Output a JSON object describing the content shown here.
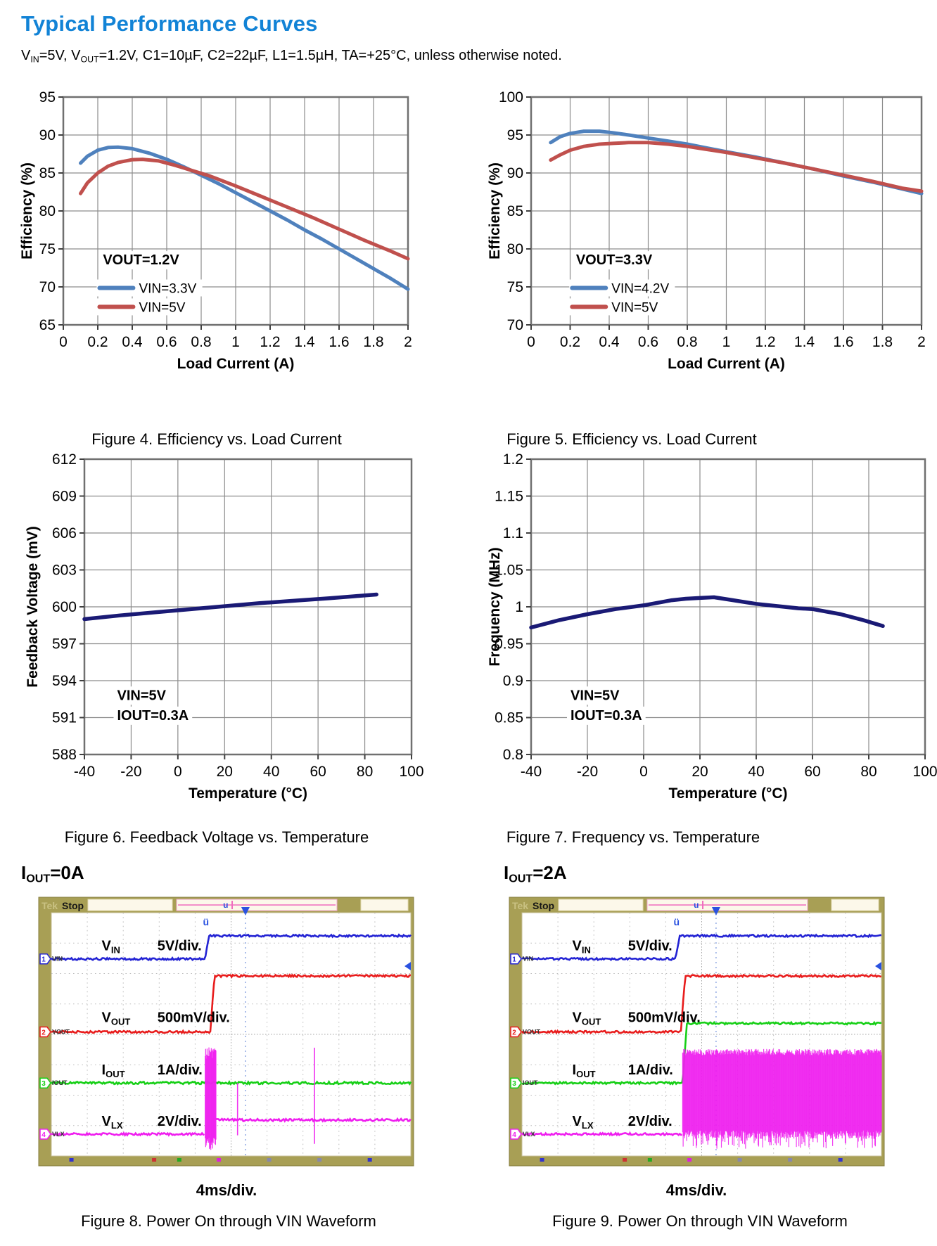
{
  "page": {
    "title": "Typical Performance Curves",
    "conditions_segments": [
      {
        "t": "V"
      },
      {
        "t": "IN",
        "sub": true
      },
      {
        "t": "=5V, V"
      },
      {
        "t": "OUT",
        "sub": true
      },
      {
        "t": "=1.2V, C1=10µF, C2=22µF, L1=1.5µH, TA=+25°C, unless otherwise noted."
      }
    ],
    "accent_color": "#1283d6"
  },
  "chart_data": [
    {
      "type": "line",
      "id": "figure4",
      "caption": "Figure 4. Efficiency vs. Load Current",
      "xlabel": "Load Current (A)",
      "ylabel": "Efficiency (%)",
      "xlim": [
        0,
        2
      ],
      "ylim": [
        65,
        95
      ],
      "xticks": [
        0,
        0.2,
        0.4,
        0.6,
        0.8,
        1,
        1.2,
        1.4,
        1.6,
        1.8,
        2
      ],
      "xtick_labels": [
        "0",
        "0.2",
        "0.4",
        "0.6",
        "0.8",
        "1",
        "1.2",
        "1.4",
        "1.6",
        "1.8",
        "2"
      ],
      "yticks": [
        65,
        70,
        75,
        80,
        85,
        90,
        95
      ],
      "ytick_labels": [
        "65",
        "70",
        "75",
        "80",
        "85",
        "90",
        "95"
      ],
      "grid": true,
      "legend_position": "lower-left",
      "annotation": {
        "lines": [
          "VOUT=1.2V"
        ],
        "fx": 0.115,
        "fy": 0.735
      },
      "legend": {
        "fx": 0.105,
        "fy": 0.838,
        "items": [
          {
            "label": "VIN=3.3V",
            "color": "#4F81BD"
          },
          {
            "label": "VIN=5V",
            "color": "#C0504D"
          }
        ]
      },
      "series": [
        {
          "name": "VIN=3.3V",
          "color": "#4F81BD",
          "points": [
            [
              0.1,
              86.3
            ],
            [
              0.14,
              87.2
            ],
            [
              0.2,
              88.0
            ],
            [
              0.26,
              88.35
            ],
            [
              0.32,
              88.4
            ],
            [
              0.4,
              88.2
            ],
            [
              0.5,
              87.6
            ],
            [
              0.6,
              86.8
            ],
            [
              0.7,
              85.8
            ],
            [
              0.8,
              84.7
            ],
            [
              0.9,
              83.6
            ],
            [
              1.0,
              82.4
            ],
            [
              1.1,
              81.2
            ],
            [
              1.2,
              80.0
            ],
            [
              1.3,
              78.8
            ],
            [
              1.4,
              77.5
            ],
            [
              1.5,
              76.3
            ],
            [
              1.6,
              75.0
            ],
            [
              1.7,
              73.7
            ],
            [
              1.8,
              72.4
            ],
            [
              1.9,
              71.1
            ],
            [
              2.0,
              69.7
            ]
          ]
        },
        {
          "name": "VIN=5V",
          "color": "#C0504D",
          "points": [
            [
              0.1,
              82.3
            ],
            [
              0.14,
              83.7
            ],
            [
              0.2,
              85.0
            ],
            [
              0.26,
              85.9
            ],
            [
              0.32,
              86.4
            ],
            [
              0.4,
              86.75
            ],
            [
              0.46,
              86.8
            ],
            [
              0.55,
              86.6
            ],
            [
              0.65,
              86.0
            ],
            [
              0.75,
              85.3
            ],
            [
              0.85,
              84.6
            ],
            [
              1.0,
              83.3
            ],
            [
              1.15,
              81.9
            ],
            [
              1.3,
              80.5
            ],
            [
              1.45,
              79.1
            ],
            [
              1.6,
              77.6
            ],
            [
              1.75,
              76.1
            ],
            [
              1.9,
              74.7
            ],
            [
              2.0,
              73.7
            ]
          ]
        }
      ]
    },
    {
      "type": "line",
      "id": "figure5",
      "caption": "Figure 5. Efficiency vs. Load Current",
      "xlabel": "Load Current (A)",
      "ylabel": "Efficiency (%)",
      "xlim": [
        0,
        2
      ],
      "ylim": [
        70,
        100
      ],
      "xticks": [
        0,
        0.2,
        0.4,
        0.6,
        0.8,
        1,
        1.2,
        1.4,
        1.6,
        1.8,
        2
      ],
      "xtick_labels": [
        "0",
        "0.2",
        "0.4",
        "0.6",
        "0.8",
        "1",
        "1.2",
        "1.4",
        "1.6",
        "1.8",
        "2"
      ],
      "yticks": [
        70,
        75,
        80,
        85,
        90,
        95,
        100
      ],
      "ytick_labels": [
        "70",
        "75",
        "80",
        "85",
        "90",
        "95",
        "100"
      ],
      "grid": true,
      "legend_position": "lower-left",
      "annotation": {
        "lines": [
          "VOUT=3.3V"
        ],
        "fx": 0.115,
        "fy": 0.735
      },
      "legend": {
        "fx": 0.105,
        "fy": 0.838,
        "items": [
          {
            "label": "VIN=4.2V",
            "color": "#4F81BD"
          },
          {
            "label": "VIN=5V",
            "color": "#C0504D"
          }
        ]
      },
      "series": [
        {
          "name": "VIN=4.2V",
          "color": "#4F81BD",
          "points": [
            [
              0.1,
              94.0
            ],
            [
              0.15,
              94.8
            ],
            [
              0.2,
              95.2
            ],
            [
              0.27,
              95.5
            ],
            [
              0.35,
              95.5
            ],
            [
              0.42,
              95.3
            ],
            [
              0.5,
              95.0
            ],
            [
              0.6,
              94.6
            ],
            [
              0.7,
              94.2
            ],
            [
              0.8,
              93.8
            ],
            [
              0.9,
              93.3
            ],
            [
              1.0,
              92.8
            ],
            [
              1.15,
              92.1
            ],
            [
              1.3,
              91.3
            ],
            [
              1.45,
              90.5
            ],
            [
              1.6,
              89.6
            ],
            [
              1.75,
              88.8
            ],
            [
              1.9,
              87.9
            ],
            [
              2.0,
              87.3
            ]
          ]
        },
        {
          "name": "VIN=5V",
          "color": "#C0504D",
          "points": [
            [
              0.1,
              91.7
            ],
            [
              0.15,
              92.4
            ],
            [
              0.2,
              93.0
            ],
            [
              0.27,
              93.5
            ],
            [
              0.35,
              93.8
            ],
            [
              0.42,
              93.9
            ],
            [
              0.5,
              94.0
            ],
            [
              0.6,
              94.0
            ],
            [
              0.7,
              93.8
            ],
            [
              0.8,
              93.5
            ],
            [
              0.9,
              93.1
            ],
            [
              1.0,
              92.7
            ],
            [
              1.15,
              92.0
            ],
            [
              1.3,
              91.3
            ],
            [
              1.45,
              90.5
            ],
            [
              1.6,
              89.7
            ],
            [
              1.75,
              88.9
            ],
            [
              1.9,
              88.0
            ],
            [
              2.0,
              87.6
            ]
          ]
        }
      ]
    },
    {
      "type": "line",
      "id": "figure6",
      "caption": "Figure 6. Feedback Voltage vs. Temperature",
      "xlabel": "Temperature (°C)",
      "ylabel": "Feedback Voltage (mV)",
      "xlim": [
        -40,
        100
      ],
      "ylim": [
        588,
        612
      ],
      "xticks": [
        -40,
        -20,
        0,
        20,
        40,
        60,
        80,
        100
      ],
      "xtick_labels": [
        "-40",
        "-20",
        "0",
        "20",
        "40",
        "60",
        "80",
        "100"
      ],
      "yticks": [
        588,
        591,
        594,
        597,
        600,
        603,
        606,
        609,
        612
      ],
      "ytick_labels": [
        "588",
        "591",
        "594",
        "597",
        "600",
        "603",
        "606",
        "609",
        "612"
      ],
      "grid": true,
      "annotation": {
        "lines": [
          "VIN=5V",
          "IOUT=0.3A"
        ],
        "fx": 0.1,
        "fy": 0.815
      },
      "legend": null,
      "series": [
        {
          "name": "VFB",
          "color": "#1a1a75",
          "points": [
            [
              -40,
              599.0
            ],
            [
              -25,
              599.3
            ],
            [
              -10,
              599.55
            ],
            [
              5,
              599.8
            ],
            [
              20,
              600.05
            ],
            [
              35,
              600.3
            ],
            [
              50,
              600.5
            ],
            [
              65,
              600.7
            ],
            [
              75,
              600.85
            ],
            [
              85,
              601.0
            ]
          ]
        }
      ]
    },
    {
      "type": "line",
      "id": "figure7",
      "caption": "Figure 7. Frequency vs. Temperature",
      "xlabel": "Temperature (°C)",
      "ylabel": "Frequency (MHz)",
      "xlim": [
        -40,
        100
      ],
      "ylim": [
        0.8,
        1.2
      ],
      "xticks": [
        -40,
        -20,
        0,
        20,
        40,
        60,
        80,
        100
      ],
      "xtick_labels": [
        "-40",
        "-20",
        "0",
        "20",
        "40",
        "60",
        "80",
        "100"
      ],
      "yticks": [
        0.8,
        0.85,
        0.9,
        0.95,
        1,
        1.05,
        1.1,
        1.15,
        1.2
      ],
      "ytick_labels": [
        "0.8",
        "0.85",
        "0.9",
        "0.95",
        "1",
        "1.05",
        "1.1",
        "1.15",
        "1.2"
      ],
      "grid": true,
      "annotation": {
        "lines": [
          "VIN=5V",
          "IOUT=0.3A"
        ],
        "fx": 0.1,
        "fy": 0.815
      },
      "legend": null,
      "series": [
        {
          "name": "Frequency",
          "color": "#1a1a75",
          "points": [
            [
              -40,
              0.972
            ],
            [
              -30,
              0.982
            ],
            [
              -20,
              0.99
            ],
            [
              -10,
              0.997
            ],
            [
              0,
              1.002
            ],
            [
              10,
              1.009
            ],
            [
              15,
              1.011
            ],
            [
              20,
              1.012
            ],
            [
              25,
              1.013
            ],
            [
              30,
              1.01
            ],
            [
              40,
              1.004
            ],
            [
              50,
              1.0
            ],
            [
              55,
              0.998
            ],
            [
              60,
              0.997
            ],
            [
              70,
              0.99
            ],
            [
              78,
              0.982
            ],
            [
              85,
              0.974
            ]
          ]
        }
      ]
    }
  ],
  "scopes": [
    {
      "id": "figure8",
      "header_segments": [
        {
          "t": "I"
        },
        {
          "t": "OUT",
          "sub": true
        },
        {
          "t": "=0A"
        }
      ],
      "toolbar": {
        "brand": "Tek",
        "status": "Stop"
      },
      "timebase": "4ms/div.",
      "caption": "Figure 8. Power On through VIN Waveform",
      "channels": [
        {
          "num": "1",
          "name": "VIN",
          "color": "#2323d4",
          "label_segments": [
            {
              "t": "V"
            },
            {
              "t": "IN",
              "sub": true
            }
          ],
          "scale": "5V/div."
        },
        {
          "num": "2",
          "name": "VOUT",
          "color": "#e81c1c",
          "label_segments": [
            {
              "t": "V"
            },
            {
              "t": "OUT",
              "sub": true
            }
          ],
          "scale": "500mV/div."
        },
        {
          "num": "3",
          "name": "IOUT",
          "color": "#17cf17",
          "label_segments": [
            {
              "t": "I"
            },
            {
              "t": "OUT",
              "sub": true
            }
          ],
          "scale": "1A/div."
        },
        {
          "num": "4",
          "name": "VLX",
          "color": "#ef1fef",
          "label_segments": [
            {
              "t": "V"
            },
            {
              "t": "LX",
              "sub": true
            }
          ],
          "scale": "2V/div."
        }
      ]
    },
    {
      "id": "figure9",
      "header_segments": [
        {
          "t": "I"
        },
        {
          "t": "OUT",
          "sub": true
        },
        {
          "t": "=2A"
        }
      ],
      "toolbar": {
        "brand": "Tek",
        "status": "Stop"
      },
      "timebase": "4ms/div.",
      "caption": "Figure 9. Power On through VIN Waveform",
      "channels": [
        {
          "num": "1",
          "name": "VIN",
          "color": "#2323d4",
          "label_segments": [
            {
              "t": "V"
            },
            {
              "t": "IN",
              "sub": true
            }
          ],
          "scale": "5V/div."
        },
        {
          "num": "2",
          "name": "VOUT",
          "color": "#e81c1c",
          "label_segments": [
            {
              "t": "V"
            },
            {
              "t": "OUT",
              "sub": true
            }
          ],
          "scale": "500mV/div."
        },
        {
          "num": "3",
          "name": "IOUT",
          "color": "#17cf17",
          "label_segments": [
            {
              "t": "I"
            },
            {
              "t": "OUT",
              "sub": true
            }
          ],
          "scale": "1A/div."
        },
        {
          "num": "4",
          "name": "VLX",
          "color": "#ef1fef",
          "label_segments": [
            {
              "t": "V"
            },
            {
              "t": "LX",
              "sub": true
            }
          ],
          "scale": "2V/div."
        }
      ]
    }
  ],
  "scope_style": {
    "frame_color": "#a89f55",
    "bar_text_brand_color": "#c9c182",
    "marker_blue": "#2a52e0",
    "marker_pink": "#f06cbe"
  }
}
